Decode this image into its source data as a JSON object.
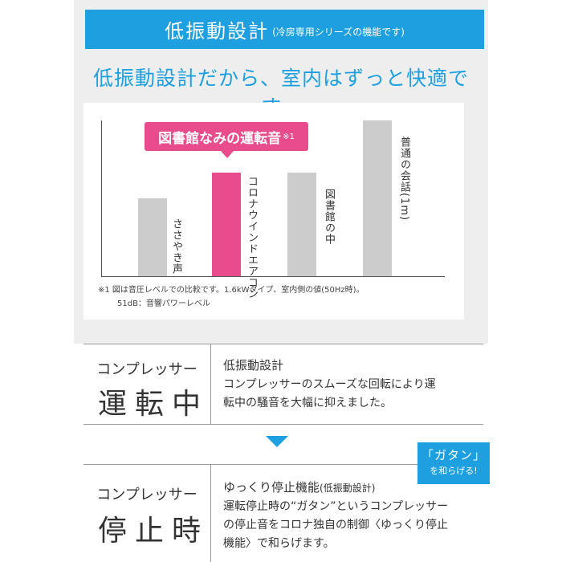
{
  "header": {
    "title": "低振動設計",
    "subtitle": "(冷房専用シリーズの機能です)"
  },
  "headline": "低振動設計だから、室内はずっと快適です。",
  "chart_data": {
    "type": "bar",
    "categories": [
      "ささやき声",
      "コロナウインドエアコン",
      "図書館の中",
      "普通の会話(1m)"
    ],
    "values": [
      30,
      40,
      40,
      60
    ],
    "highlight": "コロナウインドエアコン",
    "callout": "図書館なみの運転音",
    "callout_mark": "※1",
    "colors": {
      "bar": "#cccccc",
      "highlight": "#e84c8c"
    },
    "notes": [
      "※1 図は音圧レベルでの比較です。1.6kWタイプ、室内側の値(50Hz時)。",
      "51dB：音響パワーレベル"
    ],
    "ylim": [
      0,
      70
    ]
  },
  "sections": [
    {
      "left_top": "コンプレッサー",
      "left_big": "運転中",
      "title": "低振動設計",
      "title_note": "",
      "body_lines": [
        "コンプレッサーのスムーズな回転により運",
        "転中の騒音を大幅に抑えました。"
      ]
    },
    {
      "left_top": "コンプレッサー",
      "left_big": "停止時",
      "title": "ゆっくり停止機能",
      "title_note": "(低振動設計)",
      "body_lines": [
        "運転停止時の“ガタン”というコンプレッサー",
        "の停止音をコロナ独自の制御〈ゆっくり停止",
        "機能〉で和らげます。"
      ]
    }
  ],
  "badge": {
    "line1": "「ガタン」",
    "line2": "を和らげる!"
  },
  "colors": {
    "accent": "#1ea0e0",
    "pink": "#e84c8c",
    "panel": "#eeeeee"
  }
}
